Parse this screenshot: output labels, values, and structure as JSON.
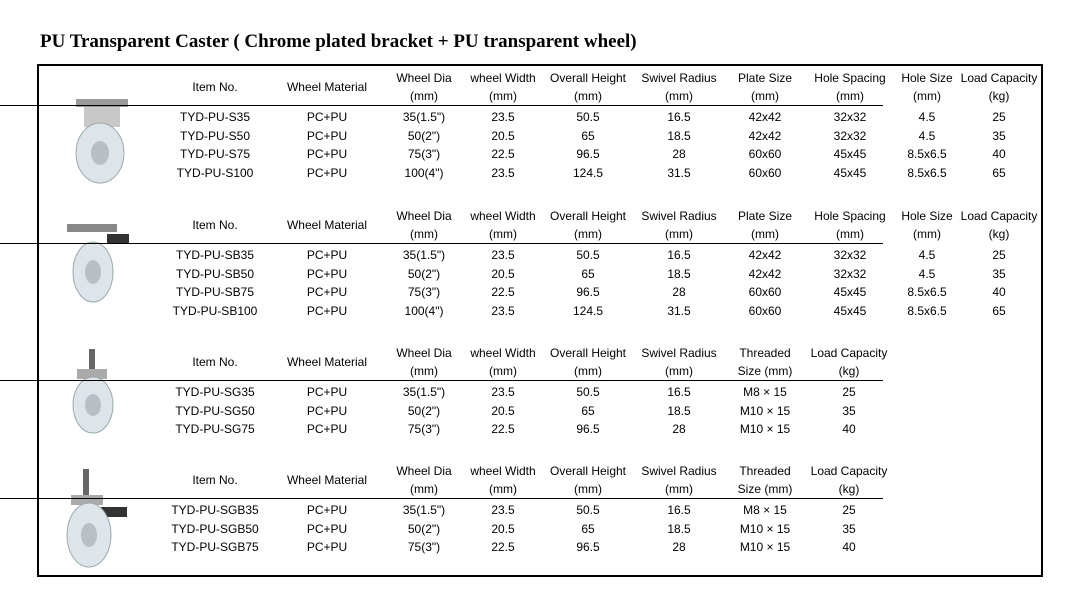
{
  "title": "PU Transparent Caster ( Chrome plated bracket + PU transparent wheel)",
  "sections": [
    {
      "header": [
        [
          "Item No."
        ],
        [
          "Wheel Material"
        ],
        [
          "Wheel Dia",
          "(mm)"
        ],
        [
          "wheel Width",
          "(mm)"
        ],
        [
          "Overall Height",
          "(mm)"
        ],
        [
          "Swivel Radius",
          "(mm)"
        ],
        [
          "Plate Size",
          "(mm)"
        ],
        [
          "Hole Spacing",
          "(mm)"
        ],
        [
          "Hole Size",
          "(mm)"
        ],
        [
          "Load Capacity",
          "(kg)"
        ]
      ],
      "rows": [
        [
          "TYD-PU-S35",
          "PC+PU",
          "35(1.5\")",
          "23.5",
          "50.5",
          "16.5",
          "42x42",
          "32x32",
          "4.5",
          "25"
        ],
        [
          "TYD-PU-S50",
          "PC+PU",
          "50(2\")",
          "20.5",
          "65",
          "18.5",
          "42x42",
          "32x32",
          "4.5",
          "35"
        ],
        [
          "TYD-PU-S75",
          "PC+PU",
          "75(3\")",
          "22.5",
          "96.5",
          "28",
          "60x60",
          "45x45",
          "8.5x6.5",
          "40"
        ],
        [
          "TYD-PU-S100",
          "PC+PU",
          "100(4\")",
          "23.5",
          "124.5",
          "31.5",
          "60x60",
          "45x45",
          "8.5x6.5",
          "65"
        ]
      ]
    },
    {
      "header": [
        [
          "Item No."
        ],
        [
          "Wheel Material"
        ],
        [
          "Wheel Dia",
          "(mm)"
        ],
        [
          "wheel Width",
          "(mm)"
        ],
        [
          "Overall Height",
          "(mm)"
        ],
        [
          "Swivel Radius",
          "(mm)"
        ],
        [
          "Plate Size",
          "(mm)"
        ],
        [
          "Hole Spacing",
          "(mm)"
        ],
        [
          "Hole Size",
          "(mm)"
        ],
        [
          "Load Capacity",
          "(kg)"
        ]
      ],
      "rows": [
        [
          "TYD-PU-SB35",
          "PC+PU",
          "35(1.5\")",
          "23.5",
          "50.5",
          "16.5",
          "42x42",
          "32x32",
          "4.5",
          "25"
        ],
        [
          "TYD-PU-SB50",
          "PC+PU",
          "50(2\")",
          "20.5",
          "65",
          "18.5",
          "42x42",
          "32x32",
          "4.5",
          "35"
        ],
        [
          "TYD-PU-SB75",
          "PC+PU",
          "75(3\")",
          "22.5",
          "96.5",
          "28",
          "60x60",
          "45x45",
          "8.5x6.5",
          "40"
        ],
        [
          "TYD-PU-SB100",
          "PC+PU",
          "100(4\")",
          "23.5",
          "124.5",
          "31.5",
          "60x60",
          "45x45",
          "8.5x6.5",
          "65"
        ]
      ]
    },
    {
      "header": [
        [
          "Item No."
        ],
        [
          "Wheel Material"
        ],
        [
          "Wheel Dia",
          "(mm)"
        ],
        [
          "wheel Width",
          "(mm)"
        ],
        [
          "Overall Height",
          "(mm)"
        ],
        [
          "Swivel Radius",
          "(mm)"
        ],
        [
          "Threaded",
          "Size (mm)"
        ],
        [
          "Load Capacity",
          "(kg)"
        ]
      ],
      "rows": [
        [
          "TYD-PU-SG35",
          "PC+PU",
          "35(1.5\")",
          "23.5",
          "50.5",
          "16.5",
          "M8 × 15",
          "25"
        ],
        [
          "TYD-PU-SG50",
          "PC+PU",
          "50(2\")",
          "20.5",
          "65",
          "18.5",
          "M10 × 15",
          "35"
        ],
        [
          "TYD-PU-SG75",
          "PC+PU",
          "75(3\")",
          "22.5",
          "96.5",
          "28",
          "M10 × 15",
          "40"
        ]
      ]
    },
    {
      "header": [
        [
          "Item No."
        ],
        [
          "Wheel Material"
        ],
        [
          "Wheel Dia",
          "(mm)"
        ],
        [
          "wheel Width",
          "(mm)"
        ],
        [
          "Overall Height",
          "(mm)"
        ],
        [
          "Swivel Radius",
          "(mm)"
        ],
        [
          "Threaded",
          "Size (mm)"
        ],
        [
          "Load Capacity",
          "(kg)"
        ]
      ],
      "rows": [
        [
          "TYD-PU-SGB35",
          "PC+PU",
          "35(1.5\")",
          "23.5",
          "50.5",
          "16.5",
          "M8 × 15",
          "25"
        ],
        [
          "TYD-PU-SGB50",
          "PC+PU",
          "50(2\")",
          "20.5",
          "65",
          "18.5",
          "M10 × 15",
          "35"
        ],
        [
          "TYD-PU-SGB75",
          "PC+PU",
          "75(3\")",
          "22.5",
          "96.5",
          "28",
          "M10 × 15",
          "40"
        ]
      ]
    }
  ]
}
